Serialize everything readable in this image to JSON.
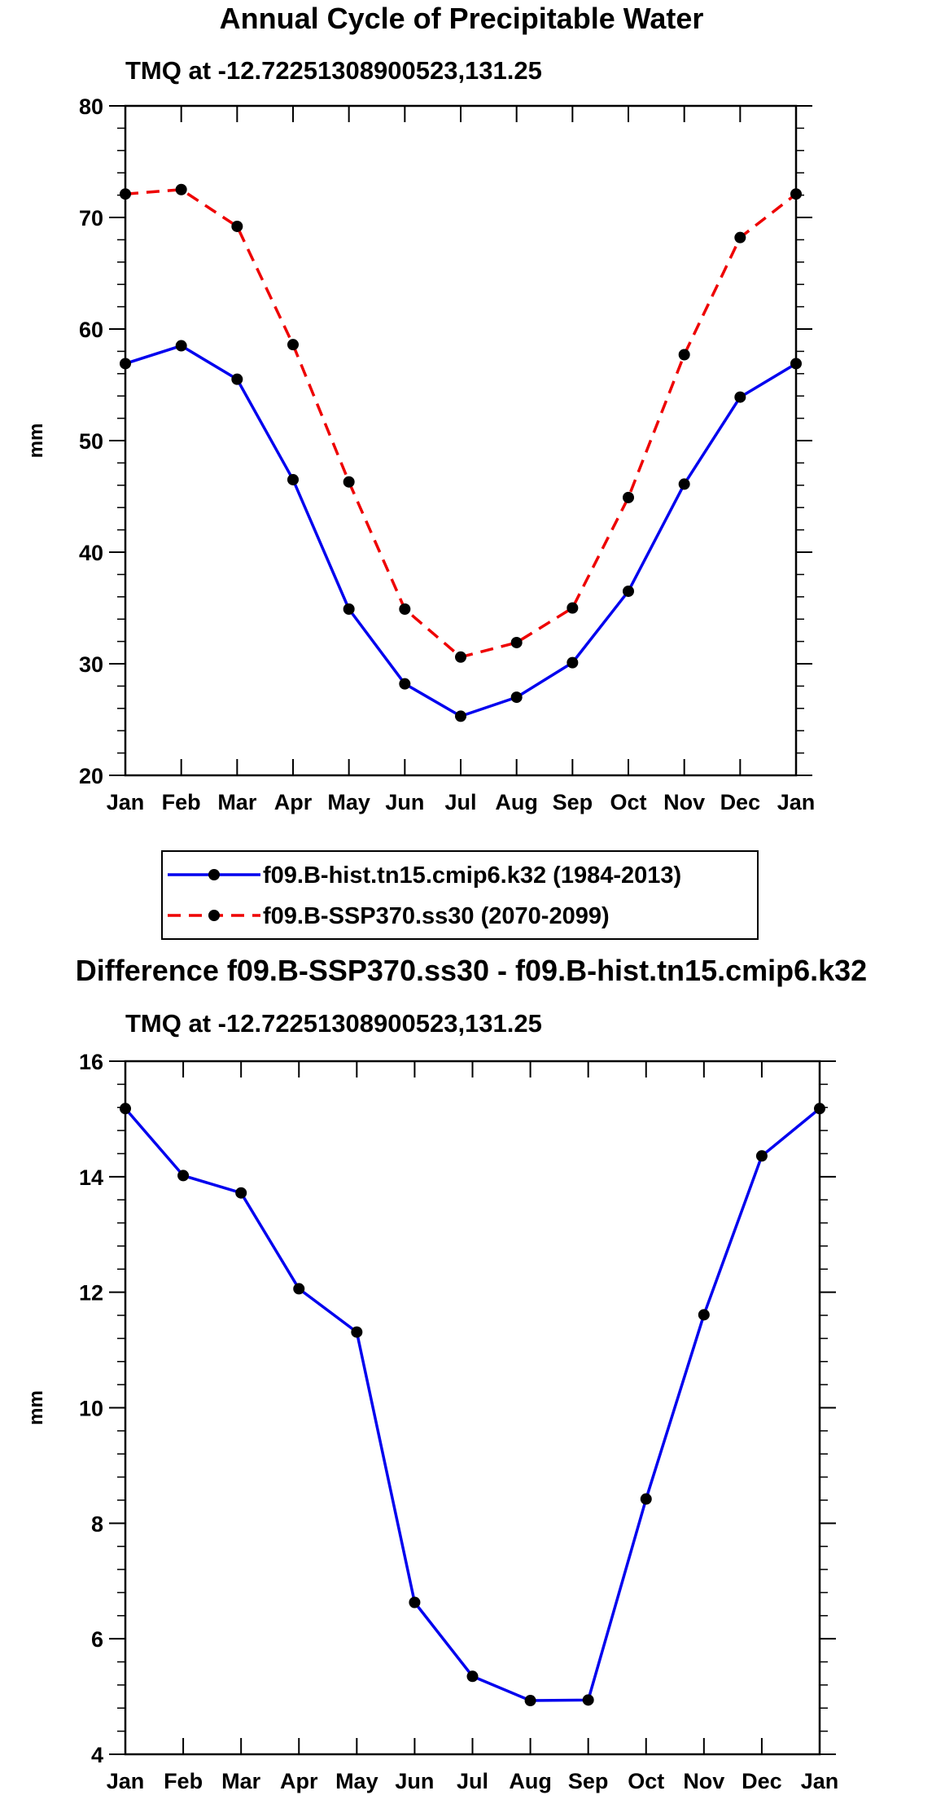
{
  "chart_data": [
    {
      "type": "line",
      "title": "Annual Cycle of Precipitable Water",
      "subtitle": "TMQ at -12.72251308900523,131.25",
      "xlabel": "",
      "ylabel": "mm",
      "categories": [
        "Jan",
        "Feb",
        "Mar",
        "Apr",
        "May",
        "Jun",
        "Jul",
        "Aug",
        "Sep",
        "Oct",
        "Nov",
        "Dec",
        "Jan"
      ],
      "yticks": [
        "20",
        "30",
        "40",
        "50",
        "60",
        "70",
        "80"
      ],
      "ylim": [
        20,
        80
      ],
      "grid": false,
      "legend_position": "bottom",
      "series": [
        {
          "name": "f09.B-hist.tn15.cmip6.k32 (1984-2013)",
          "color": "#0000ee",
          "style": "solid",
          "values": [
            56.9,
            58.5,
            55.5,
            46.5,
            34.9,
            28.2,
            25.3,
            27.0,
            30.1,
            36.5,
            46.1,
            53.9,
            56.9
          ]
        },
        {
          "name": "f09.B-SSP370.ss30 (2070-2099)",
          "color": "#ee0000",
          "style": "dashed",
          "values": [
            72.1,
            72.5,
            69.2,
            58.6,
            46.3,
            34.9,
            30.6,
            31.9,
            35.0,
            44.9,
            57.7,
            68.2,
            72.1
          ]
        }
      ]
    },
    {
      "type": "line",
      "title": "Difference f09.B-SSP370.ss30 - f09.B-hist.tn15.cmip6.k32",
      "subtitle": "TMQ at -12.72251308900523,131.25",
      "xlabel": "",
      "ylabel": "mm",
      "categories": [
        "Jan",
        "Feb",
        "Mar",
        "Apr",
        "May",
        "Jun",
        "Jul",
        "Aug",
        "Sep",
        "Oct",
        "Nov",
        "Dec",
        "Jan"
      ],
      "yticks": [
        "4",
        "6",
        "8",
        "10",
        "12",
        "14",
        "16"
      ],
      "ylim": [
        4,
        16
      ],
      "grid": false,
      "series": [
        {
          "name": "Difference",
          "color": "#0000ee",
          "style": "solid",
          "values": [
            15.18,
            14.02,
            13.72,
            12.06,
            11.31,
            6.63,
            5.35,
            4.93,
            4.94,
            8.42,
            11.61,
            14.36,
            15.18
          ]
        }
      ]
    }
  ]
}
